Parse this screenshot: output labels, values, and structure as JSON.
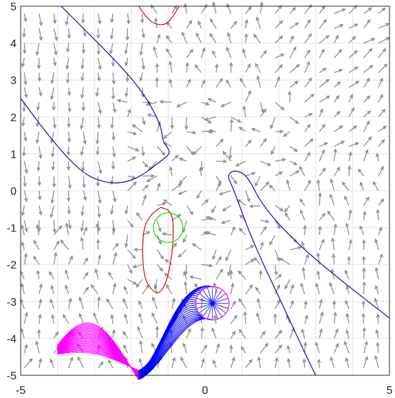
{
  "chart_data": {
    "type": "line",
    "title": "",
    "xlabel": "",
    "ylabel": "",
    "xlim": [
      -5,
      5
    ],
    "ylim": [
      -5,
      5
    ],
    "grid": true,
    "x_ticks": [
      "-5",
      "0",
      "5"
    ],
    "y_ticks": [
      "5",
      "4",
      "3",
      "2",
      "1",
      "0",
      "-1",
      "-2",
      "-3",
      "-4",
      "-5"
    ],
    "colors": {
      "vector_field": "#8c8c8c",
      "grid": "#e3e3e3",
      "boundary": "#0000e6",
      "red_contour": "#dd0000",
      "green_circle": "#00dd00",
      "blue_bundle": "#0000ff",
      "magenta_bundle": "#ff00ff"
    },
    "series": [
      {
        "color": "blue",
        "points": [
          [
            -3.9,
            5
          ],
          [
            -3.3,
            4.4
          ],
          [
            -2.4,
            3.5
          ],
          [
            -1.7,
            2.7
          ],
          [
            -1.2,
            1.8
          ],
          [
            -1.15,
            1.35
          ],
          [
            -1.0,
            1.15
          ],
          [
            -0.95,
            1.0
          ],
          [
            -1.2,
            0.8
          ],
          [
            -1.8,
            0.35
          ],
          [
            -2.3,
            0.2
          ],
          [
            -2.7,
            0.22
          ],
          [
            -3.3,
            0.45
          ],
          [
            -4.1,
            1.3
          ],
          [
            -5,
            2.5
          ]
        ]
      },
      {
        "color": "blue",
        "points": [
          [
            5,
            -3.45
          ],
          [
            3.5,
            -2.3
          ],
          [
            2.2,
            -1.15
          ],
          [
            1.5,
            -0.3
          ],
          [
            1.2,
            0.3
          ],
          [
            1.0,
            0.5
          ],
          [
            0.75,
            0.55
          ],
          [
            0.6,
            0.4
          ],
          [
            0.75,
            0.1
          ],
          [
            1.3,
            -1.4
          ],
          [
            2.2,
            -3.3
          ],
          [
            2.8,
            -4.6
          ],
          [
            3.0,
            -5
          ]
        ]
      },
      {
        "color": "red",
        "points": [
          [
            -1.8,
            5
          ],
          [
            -1.6,
            4.7
          ],
          [
            -1.35,
            4.5
          ],
          [
            -1.05,
            4.5
          ],
          [
            -0.85,
            4.75
          ],
          [
            -0.7,
            5
          ]
        ]
      },
      {
        "color": "red",
        "points": [
          [
            -1.2,
            -0.45
          ],
          [
            -1.48,
            -0.62
          ],
          [
            -1.7,
            -1.1
          ],
          [
            -1.68,
            -2.3
          ],
          [
            -1.45,
            -2.7
          ],
          [
            -1.25,
            -2.8
          ],
          [
            -1.05,
            -2.5
          ],
          [
            -0.9,
            -1.8
          ],
          [
            -0.85,
            -1.0
          ],
          [
            -0.92,
            -0.55
          ],
          [
            -1.2,
            -0.45
          ]
        ]
      },
      {
        "color": "green",
        "center": [
          -1.0,
          -1.0
        ],
        "radius": 0.4
      }
    ],
    "trajectory_bundle": {
      "count": 26,
      "start_circle_center": [
        0.2,
        -3.05
      ],
      "start_circle_radius": 0.45
    }
  }
}
